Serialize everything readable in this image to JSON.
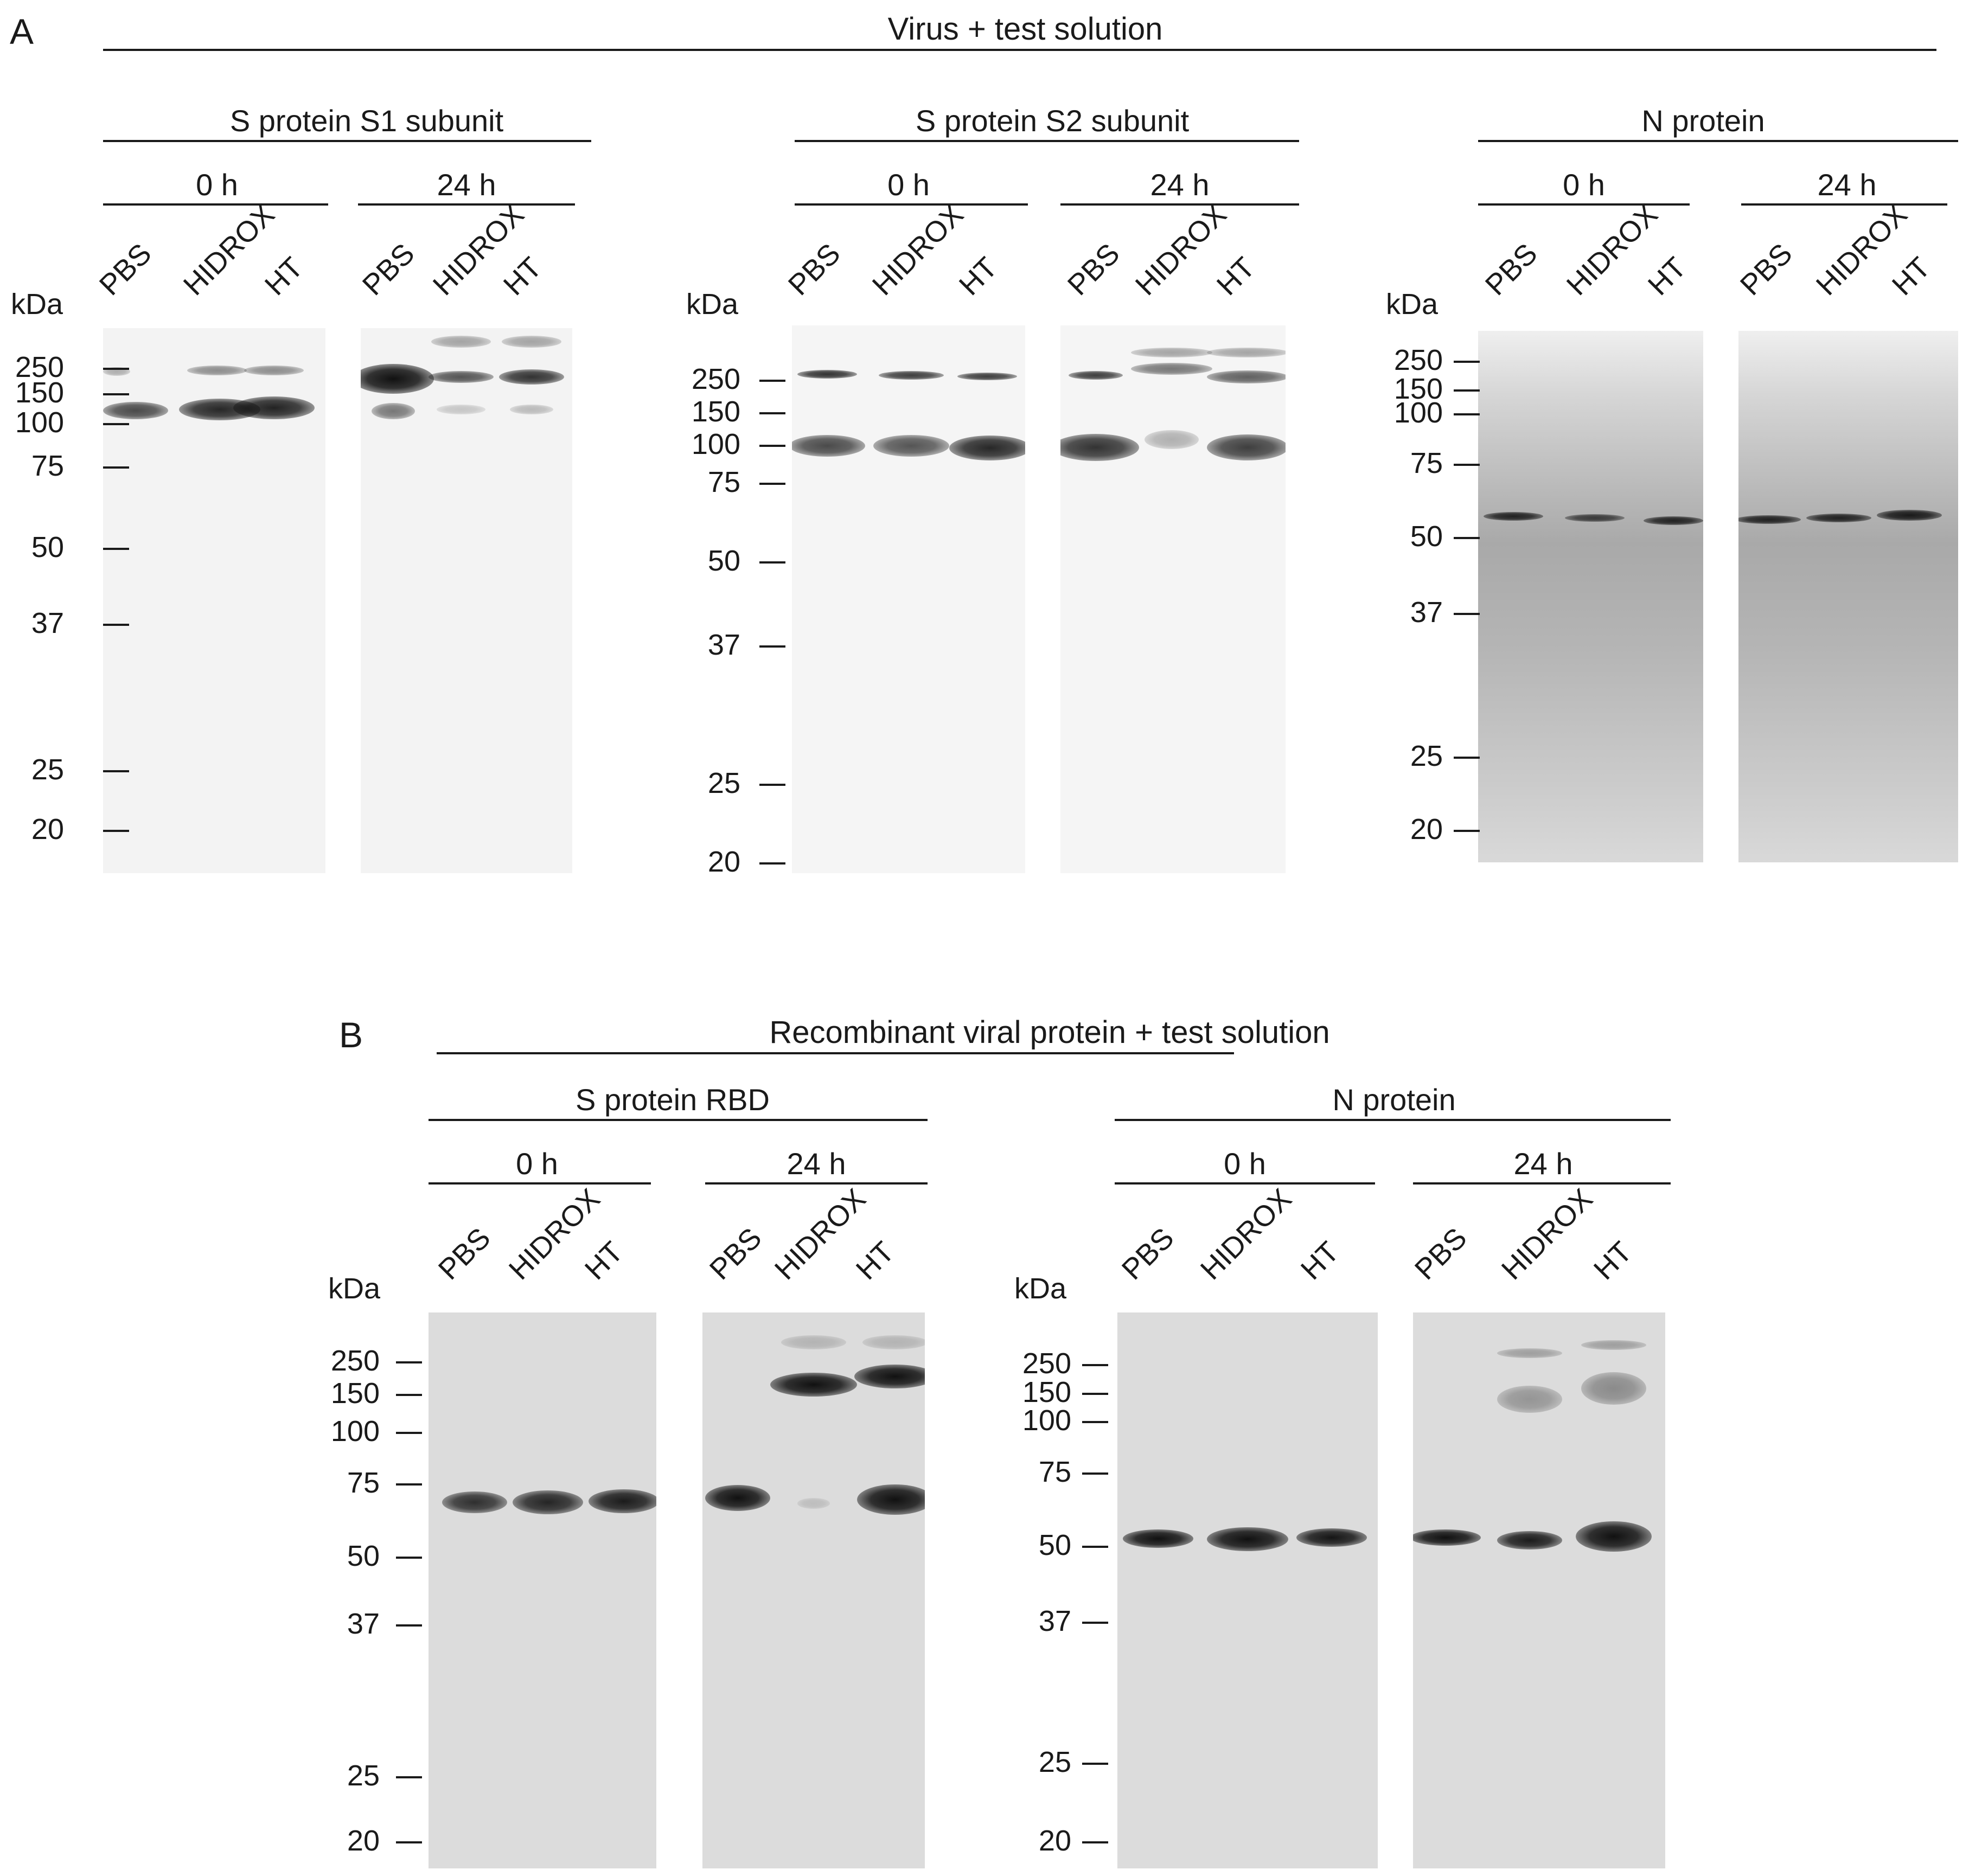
{
  "panelA": {
    "letter": "A",
    "title": "Virus + test solution",
    "subpanels": [
      {
        "title": "S protein S1 subunit",
        "times": [
          "0 h",
          "24 h"
        ],
        "lanes": [
          "PBS",
          "HIDROX",
          "HT"
        ],
        "unit": "kDa",
        "markers": [
          "250",
          "150",
          "100",
          "75",
          "50",
          "37",
          "25",
          "20"
        ]
      },
      {
        "title": "S protein S2 subunit",
        "times": [
          "0 h",
          "24 h"
        ],
        "lanes": [
          "PBS",
          "HIDROX",
          "HT"
        ],
        "unit": "kDa",
        "markers": [
          "250",
          "150",
          "100",
          "75",
          "50",
          "37",
          "25",
          "20"
        ]
      },
      {
        "title": "N protein",
        "times": [
          "0 h",
          "24 h"
        ],
        "lanes": [
          "PBS",
          "HIDROX",
          "HT"
        ],
        "unit": "kDa",
        "markers": [
          "250",
          "150",
          "100",
          "75",
          "50",
          "37",
          "25",
          "20"
        ]
      }
    ]
  },
  "panelB": {
    "letter": "B",
    "title": "Recombinant viral protein + test solution",
    "subpanels": [
      {
        "title": "S protein RBD",
        "times": [
          "0 h",
          "24 h"
        ],
        "lanes": [
          "PBS",
          "HIDROX",
          "HT"
        ],
        "unit": "kDa",
        "markers": [
          "250",
          "150",
          "100",
          "75",
          "50",
          "37",
          "25",
          "20"
        ]
      },
      {
        "title": "N protein",
        "times": [
          "0 h",
          "24 h"
        ],
        "lanes": [
          "PBS",
          "HIDROX",
          "HT"
        ],
        "unit": "kDa",
        "markers": [
          "250",
          "150",
          "100",
          "75",
          "50",
          "37",
          "25",
          "20"
        ]
      }
    ]
  },
  "colors": {
    "ink": "#1a1a1a",
    "membraneLight": "#f2f2f2",
    "membraneGrayB": "#dcdcdc",
    "membraneN": "#b8b8b8",
    "band": "#111111"
  }
}
